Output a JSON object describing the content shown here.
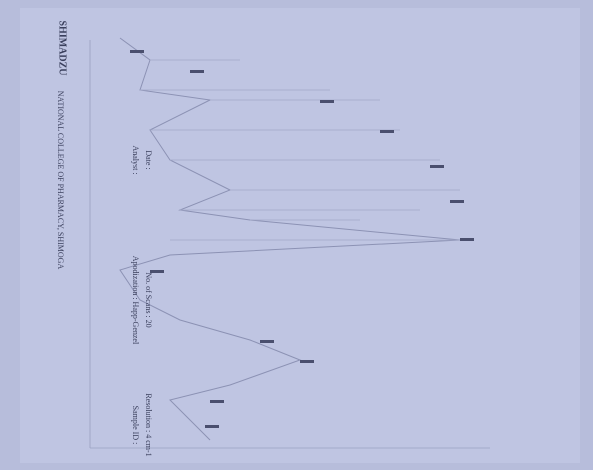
{
  "header": {
    "logo": "SHIMADZU",
    "institution": "NATIONAL COLLEGE OF PHARMACY, SHIMOGA"
  },
  "footer": {
    "fields": [
      {
        "label": "Sample ID :"
      },
      {
        "label": "Resolution : 4 cm-1"
      },
      {
        "label": "Apodization : Happ-Genzel"
      },
      {
        "label": "No. of Scans : 20"
      },
      {
        "label": "Analyst :"
      },
      {
        "label": "Date :"
      }
    ]
  }
}
